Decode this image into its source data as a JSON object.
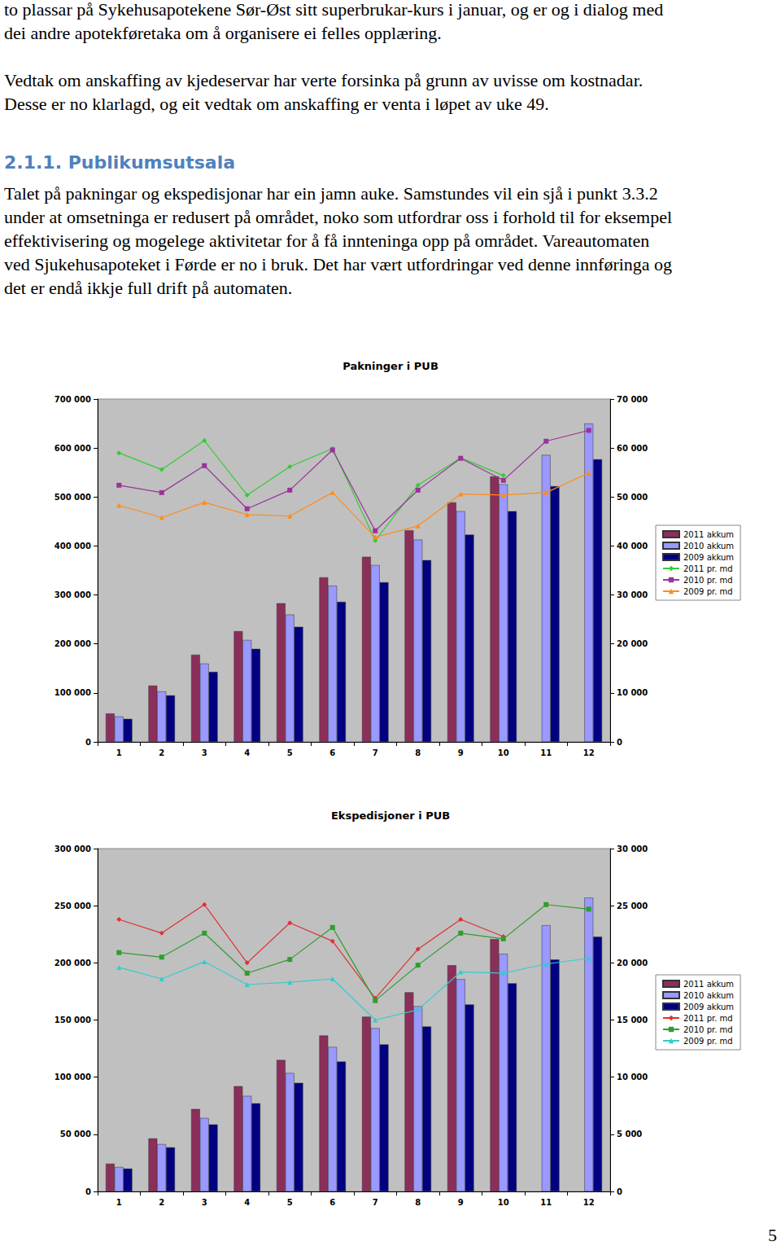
{
  "paragraphs": [
    {
      "lines": [
        "to plassar på Sykehusapotekene Sør-Øst sitt superbrukar-kurs i januar, og er og i dialog med",
        "dei andre apotekføretaka om å organisere ei felles opplæring."
      ]
    },
    {
      "lines": [
        "Vedtak om anskaffing av kjedeservar har verte forsinka på grunn av uvisse om kostnadar.",
        "Desse er no klarlagd, og eit vedtak om anskaffing er venta i løpet av uke 49."
      ]
    }
  ],
  "heading": "2.1.1. Publikumsutsala",
  "section_paragraph": {
    "lines": [
      "Talet på pakningar og ekspedisjonar har ein jamn auke. Samstundes vil ein sjå i punkt 3.3.2",
      "under at omsetninga er redusert på området, noko som utfordrar oss i forhold til for eksempel",
      "effektivisering og mogelege aktivitetar for å få innteninga opp på området. Vareautomaten",
      "ved Sjukehusapoteket i Førde er no i bruk. Det har vært utfordringar ved denne innføringa og",
      "det er endå ikkje full drift på automaten."
    ]
  },
  "page_number": "5",
  "chart_data": [
    {
      "type": "bar",
      "title": "Pakninger i PUB",
      "categories": [
        "1",
        "2",
        "3",
        "4",
        "5",
        "6",
        "7",
        "8",
        "9",
        "10",
        "11",
        "12"
      ],
      "ylim": [
        0,
        700000
      ],
      "yticks": [
        0,
        {
          "value": 100000,
          "label": "100 000"
        },
        {
          "value": 200000,
          "label": "200 000"
        },
        {
          "value": 300000,
          "label": "300 000"
        },
        {
          "value": 400000,
          "label": "400 000"
        },
        {
          "value": 500000,
          "label": "500 000"
        },
        {
          "value": 600000,
          "label": "600 000"
        },
        {
          "value": 700000,
          "label": "700 000"
        }
      ],
      "y2lim": [
        0,
        70000
      ],
      "y2ticks": [
        0,
        {
          "value": 10000,
          "label": "10 000"
        },
        {
          "value": 20000,
          "label": "20 000"
        },
        {
          "value": 30000,
          "label": "30 000"
        },
        {
          "value": 40000,
          "label": "40 000"
        },
        {
          "value": 50000,
          "label": "50 000"
        },
        {
          "value": 60000,
          "label": "60 000"
        },
        {
          "value": 70000,
          "label": "70 000"
        }
      ],
      "grid": false,
      "legend": "right",
      "series": [
        {
          "name": "2011 akkum",
          "type": "bar",
          "color": "#8b2f5a",
          "values": [
            58000,
            115000,
            178000,
            226000,
            283000,
            336000,
            378000,
            432000,
            489000,
            542000,
            null,
            null
          ]
        },
        {
          "name": "2010 akkum",
          "type": "bar",
          "color": "#9999ff",
          "values": [
            52000,
            103000,
            160000,
            208000,
            260000,
            319000,
            361000,
            413000,
            471000,
            526000,
            586000,
            650000
          ]
        },
        {
          "name": "2009 akkum",
          "type": "bar",
          "color": "#000080",
          "values": [
            47000,
            95000,
            143000,
            190000,
            235000,
            286000,
            326000,
            371000,
            423000,
            471000,
            522000,
            577000
          ]
        },
        {
          "name": "2011 pr. md",
          "type": "line",
          "axis": "y2",
          "color": "#33cc33",
          "marker": "diamond",
          "values": [
            59000,
            55600,
            61500,
            50400,
            56200,
            59900,
            41100,
            52400,
            58000,
            54400,
            null,
            null
          ]
        },
        {
          "name": "2010 pr. md",
          "type": "line",
          "axis": "y2",
          "color": "#993399",
          "marker": "square",
          "values": [
            52400,
            50900,
            56400,
            47600,
            51400,
            59600,
            43100,
            51400,
            57900,
            53400,
            61400,
            63600
          ]
        },
        {
          "name": "2009 pr. md",
          "type": "line",
          "axis": "y2",
          "color": "#ff8c1a",
          "marker": "triangle",
          "values": [
            48300,
            45800,
            48900,
            46400,
            46100,
            50900,
            41800,
            44100,
            50600,
            50400,
            50900,
            54900
          ]
        }
      ]
    },
    {
      "type": "bar",
      "title": "Ekspedisjoner i PUB",
      "categories": [
        "1",
        "2",
        "3",
        "4",
        "5",
        "6",
        "7",
        "8",
        "9",
        "10",
        "11",
        "12"
      ],
      "ylim": [
        0,
        300000
      ],
      "yticks": [
        0,
        {
          "value": 50000,
          "label": "50 000"
        },
        {
          "value": 100000,
          "label": "100 000"
        },
        {
          "value": 150000,
          "label": "150 000"
        },
        {
          "value": 200000,
          "label": "200 000"
        },
        {
          "value": 250000,
          "label": "250 000"
        },
        {
          "value": 300000,
          "label": "300 000"
        }
      ],
      "y2lim": [
        0,
        30000
      ],
      "y2ticks": [
        0,
        {
          "value": 5000,
          "label": "5 000"
        },
        {
          "value": 10000,
          "label": "10 000"
        },
        {
          "value": 15000,
          "label": "15 000"
        },
        {
          "value": 20000,
          "label": "20 000"
        },
        {
          "value": 25000,
          "label": "25 000"
        },
        {
          "value": 30000,
          "label": "30 000"
        }
      ],
      "grid": false,
      "legend": "right",
      "series": [
        {
          "name": "2011 akkum",
          "type": "bar",
          "color": "#8b2f5a",
          "values": [
            24300,
            46400,
            72100,
            92100,
            115000,
            136400,
            152900,
            174300,
            197900,
            220700,
            null,
            null
          ]
        },
        {
          "name": "2010 akkum",
          "type": "bar",
          "color": "#9999ff",
          "values": [
            21400,
            41400,
            64300,
            83600,
            103600,
            126400,
            142900,
            162100,
            185700,
            207900,
            232900,
            257100
          ]
        },
        {
          "name": "2009 akkum",
          "type": "bar",
          "color": "#000080",
          "values": [
            20000,
            38600,
            58600,
            77100,
            95000,
            113600,
            128600,
            144300,
            163600,
            182100,
            202900,
            222900
          ]
        },
        {
          "name": "2011 pr. md",
          "type": "line",
          "axis": "y2",
          "color": "#e03030",
          "marker": "diamond",
          "values": [
            23800,
            22600,
            25100,
            20000,
            23500,
            21900,
            16900,
            21200,
            23800,
            22300,
            null,
            null
          ]
        },
        {
          "name": "2010 pr. md",
          "type": "line",
          "axis": "y2",
          "color": "#2e9e2e",
          "marker": "square",
          "values": [
            20900,
            20500,
            22600,
            19100,
            20300,
            23100,
            16700,
            19800,
            22600,
            22100,
            25100,
            24700
          ]
        },
        {
          "name": "2009 pr. md",
          "type": "line",
          "axis": "y2",
          "color": "#33cccc",
          "marker": "triangle",
          "values": [
            19600,
            18600,
            20100,
            18100,
            18300,
            18600,
            15000,
            15900,
            19200,
            19100,
            19900,
            20400
          ]
        }
      ]
    }
  ]
}
